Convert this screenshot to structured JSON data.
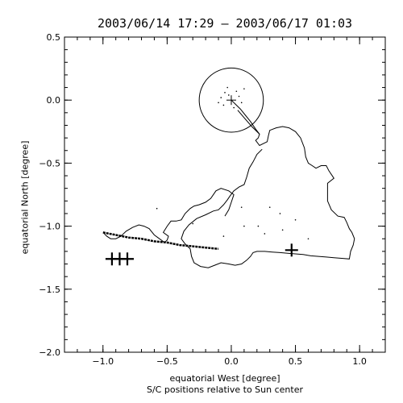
{
  "chart_data": {
    "type": "scatter",
    "title": "2003/06/14 17:29 – 2003/06/17 01:03",
    "xlabel": "equatorial West [degree]",
    "xlabel_sub": "S/C positions relative to Sun center",
    "ylabel": "equatorial North [degree]",
    "xlim": [
      -1.3,
      1.2
    ],
    "ylim": [
      -2.0,
      0.5
    ],
    "x_ticks": [
      -1.0,
      -0.5,
      0.0,
      0.5,
      1.0
    ],
    "x_tick_labels": [
      "−1.0",
      "−0.5",
      "0.0",
      "0.5",
      "1.0"
    ],
    "y_ticks": [
      0.5,
      0.0,
      -0.5,
      -1.0,
      -1.5,
      -2.0
    ],
    "y_tick_labels": [
      "0.5",
      "0.0",
      "−0.5",
      "−1.0",
      "−1.5",
      "−2.0"
    ],
    "grid": false,
    "sun": {
      "center": [
        0.0,
        0.0
      ],
      "radius": 0.25
    },
    "crosses": [
      {
        "x": 0.0,
        "y": 0.0,
        "size": "small"
      },
      {
        "x": 0.47,
        "y": -1.19,
        "size": "large"
      },
      {
        "x": -0.93,
        "y": -1.26,
        "size": "large"
      },
      {
        "x": -0.87,
        "y": -1.26,
        "size": "large"
      },
      {
        "x": -0.81,
        "y": -1.26,
        "size": "large"
      }
    ],
    "series": [
      {
        "values": [
          [
            0.05,
            -0.08
          ],
          [
            0.1,
            -0.14
          ],
          [
            0.16,
            -0.21
          ],
          [
            0.22,
            -0.27
          ],
          [
            0.21,
            -0.3
          ],
          [
            0.19,
            -0.32
          ],
          [
            0.22,
            -0.36
          ],
          [
            0.28,
            -0.33
          ],
          [
            0.29,
            -0.28
          ],
          [
            0.3,
            -0.24
          ],
          [
            0.35,
            -0.22
          ],
          [
            0.4,
            -0.21
          ],
          [
            0.45,
            -0.22
          ],
          [
            0.5,
            -0.25
          ],
          [
            0.54,
            -0.3
          ],
          [
            0.57,
            -0.38
          ],
          [
            0.58,
            -0.45
          ],
          [
            0.6,
            -0.5
          ],
          [
            0.63,
            -0.52
          ],
          [
            0.66,
            -0.54
          ],
          [
            0.7,
            -0.52
          ],
          [
            0.74,
            -0.52
          ],
          [
            0.76,
            -0.56
          ],
          [
            0.8,
            -0.62
          ],
          [
            0.75,
            -0.66
          ],
          [
            0.75,
            -0.73
          ],
          [
            0.75,
            -0.8
          ],
          [
            0.78,
            -0.87
          ],
          [
            0.83,
            -0.92
          ],
          [
            0.88,
            -0.93
          ],
          [
            0.9,
            -0.97
          ],
          [
            0.92,
            -1.02
          ],
          [
            0.94,
            -1.05
          ],
          [
            0.96,
            -1.1
          ],
          [
            0.95,
            -1.15
          ],
          [
            0.93,
            -1.2
          ],
          [
            0.92,
            -1.26
          ],
          [
            0.86,
            -1.255
          ],
          [
            0.8,
            -1.25
          ],
          [
            0.74,
            -1.245
          ],
          [
            0.68,
            -1.24
          ],
          [
            0.62,
            -1.235
          ],
          [
            0.56,
            -1.225
          ],
          [
            0.5,
            -1.22
          ],
          [
            0.44,
            -1.215
          ],
          [
            0.38,
            -1.21
          ],
          [
            0.32,
            -1.205
          ],
          [
            0.26,
            -1.2
          ],
          [
            0.2,
            -1.2
          ],
          [
            0.17,
            -1.21
          ],
          [
            0.15,
            -1.24
          ],
          [
            0.12,
            -1.27
          ],
          [
            0.08,
            -1.3
          ],
          [
            0.03,
            -1.31
          ],
          [
            -0.02,
            -1.3
          ],
          [
            -0.08,
            -1.29
          ],
          [
            -0.13,
            -1.31
          ],
          [
            -0.18,
            -1.33
          ],
          [
            -0.24,
            -1.32
          ],
          [
            -0.29,
            -1.29
          ],
          [
            -0.31,
            -1.24
          ],
          [
            -0.32,
            -1.18
          ],
          [
            -0.36,
            -1.14
          ],
          [
            -0.39,
            -1.1
          ],
          [
            -0.37,
            -1.04
          ],
          [
            -0.33,
            -0.99
          ],
          [
            -0.27,
            -0.94
          ],
          [
            -0.2,
            -0.91
          ],
          [
            -0.14,
            -0.88
          ],
          [
            -0.1,
            -0.87
          ],
          [
            -0.06,
            -0.83
          ],
          [
            -0.03,
            -0.79
          ],
          [
            -0.01,
            -0.76
          ],
          [
            0.02,
            -0.72
          ],
          [
            0.06,
            -0.69
          ],
          [
            0.1,
            -0.67
          ],
          [
            0.12,
            -0.61
          ],
          [
            0.14,
            -0.54
          ],
          [
            0.17,
            -0.49
          ],
          [
            0.2,
            -0.43
          ],
          [
            0.24,
            -0.39
          ]
        ]
      },
      {
        "values": [
          [
            -0.05,
            -0.92
          ],
          [
            -0.02,
            -0.87
          ],
          [
            0.0,
            -0.81
          ],
          [
            0.02,
            -0.75
          ],
          [
            -0.02,
            -0.72
          ],
          [
            -0.08,
            -0.7
          ],
          [
            -0.12,
            -0.72
          ],
          [
            -0.16,
            -0.78
          ],
          [
            -0.2,
            -0.81
          ],
          [
            -0.25,
            -0.83
          ],
          [
            -0.29,
            -0.84
          ],
          [
            -0.32,
            -0.86
          ],
          [
            -0.36,
            -0.9
          ],
          [
            -0.39,
            -0.95
          ],
          [
            -0.43,
            -0.96
          ],
          [
            -0.47,
            -0.96
          ],
          [
            -0.5,
            -1.0
          ],
          [
            -0.53,
            -1.05
          ],
          [
            -0.49,
            -1.08
          ],
          [
            -0.5,
            -1.11
          ],
          [
            -0.52,
            -1.13
          ],
          [
            -0.56,
            -1.1
          ],
          [
            -0.6,
            -1.07
          ],
          [
            -0.64,
            -1.02
          ],
          [
            -0.68,
            -1.0
          ],
          [
            -0.72,
            -0.99
          ],
          [
            -0.77,
            -1.01
          ],
          [
            -0.82,
            -1.04
          ],
          [
            -0.86,
            -1.08
          ],
          [
            -0.9,
            -1.1
          ],
          [
            -0.94,
            -1.1
          ],
          [
            -0.97,
            -1.08
          ],
          [
            -0.99,
            -1.06
          ]
        ]
      },
      {
        "values": [
          [
            -1.0,
            -1.05
          ],
          [
            -0.9,
            -1.07
          ],
          [
            -0.8,
            -1.09
          ],
          [
            -0.7,
            -1.1
          ],
          [
            -0.6,
            -1.12
          ],
          [
            -0.5,
            -1.13
          ],
          [
            -0.4,
            -1.15
          ],
          [
            -0.3,
            -1.16
          ],
          [
            -0.2,
            -1.17
          ],
          [
            -0.1,
            -1.18
          ]
        ]
      },
      {
        "values": [
          [
            0.0,
            0.0
          ],
          [
            0.03,
            -0.03
          ],
          [
            0.07,
            -0.07
          ],
          [
            0.11,
            -0.12
          ],
          [
            0.15,
            -0.17
          ],
          [
            0.19,
            -0.23
          ],
          [
            0.22,
            -0.27
          ]
        ]
      }
    ],
    "scatter_points": [
      [
        -0.05,
        0.06
      ],
      [
        -0.08,
        0.02
      ],
      [
        -0.06,
        -0.04
      ],
      [
        0.04,
        0.07
      ],
      [
        0.06,
        0.03
      ],
      [
        0.02,
        -0.06
      ],
      [
        -0.03,
        0.1
      ],
      [
        0.08,
        -0.02
      ],
      [
        -0.1,
        -0.02
      ],
      [
        0.1,
        0.09
      ],
      [
        -0.02,
        0.04
      ],
      [
        0.3,
        -0.85
      ],
      [
        0.38,
        -0.9
      ],
      [
        0.26,
        -1.06
      ],
      [
        0.21,
        -1.0
      ],
      [
        0.4,
        -1.03
      ],
      [
        -0.58,
        -0.86
      ],
      [
        0.5,
        -0.95
      ],
      [
        -0.06,
        -1.08
      ],
      [
        0.1,
        -1.0
      ],
      [
        -0.3,
        -0.98
      ],
      [
        0.08,
        -0.85
      ],
      [
        0.6,
        -1.1
      ]
    ]
  }
}
